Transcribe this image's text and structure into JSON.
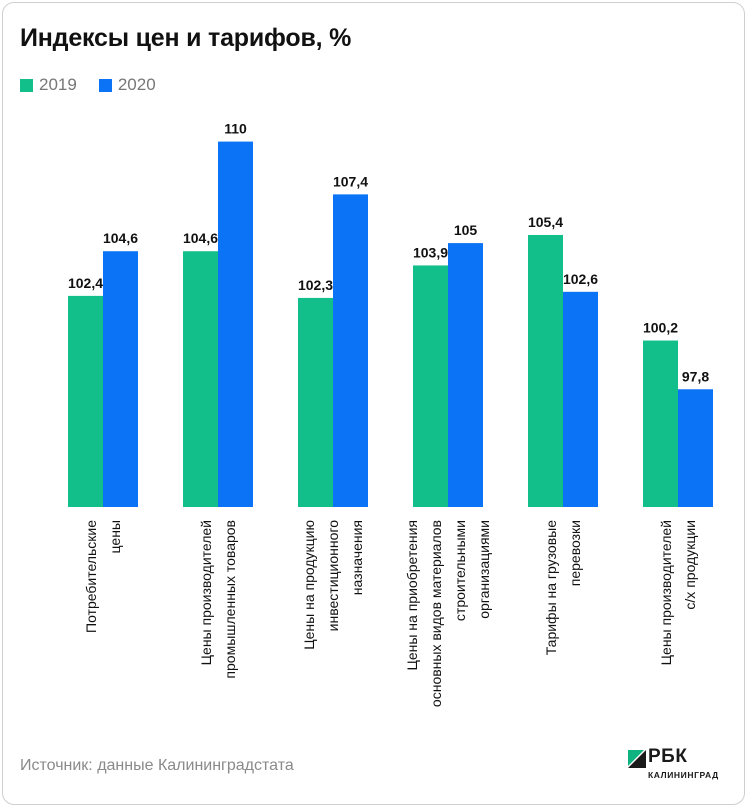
{
  "chart_data": {
    "type": "bar",
    "title": "Индексы цен и тарифов, %",
    "categories": [
      [
        "Потребительские",
        "цены"
      ],
      [
        "Цены производителей",
        "промышленных товаров"
      ],
      [
        "Цены на продукцию",
        "инвестиционного",
        "назначения"
      ],
      [
        "Цены на приобретения",
        "основных видов материалов",
        "строительными",
        "организациями"
      ],
      [
        "Тарифы на грузовые",
        "перевозки"
      ],
      [
        "Цены производителей",
        "с/х продукции"
      ]
    ],
    "series": [
      {
        "name": "2019",
        "color": "#12bf8a",
        "values": [
          102.4,
          104.6,
          102.3,
          103.9,
          105.4,
          100.2
        ],
        "labels": [
          "102,4",
          "104,6",
          "102,3",
          "103,9",
          "105,4",
          "100,2"
        ]
      },
      {
        "name": "2020",
        "color": "#0b73f5",
        "values": [
          104.6,
          110,
          107.4,
          105,
          102.6,
          97.8
        ],
        "labels": [
          "104,6",
          "110",
          "107,4",
          "105",
          "102,6",
          "97,8"
        ]
      }
    ],
    "xlabel": "",
    "ylabel": "",
    "ylim": [
      92,
      110
    ],
    "grid": false,
    "legend": "top-left"
  },
  "source": "Источник: данные Калининградстата",
  "logo": {
    "name": "РБК",
    "sub": "КАЛИНИНГРАД"
  }
}
